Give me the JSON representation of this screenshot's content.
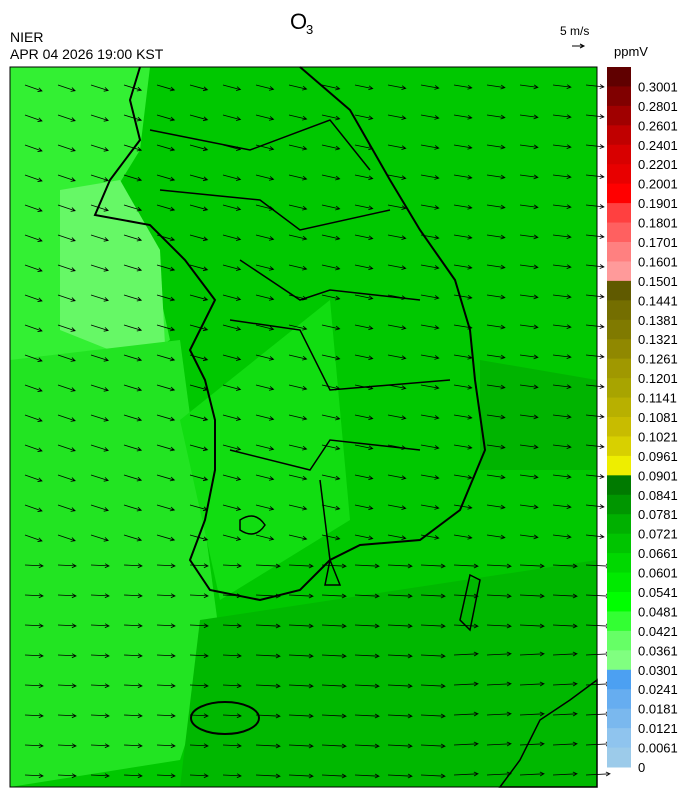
{
  "header": {
    "title_main": "O",
    "title_sub": "3",
    "agency": "NIER",
    "datetime": "APR 04 2026 19:00 KST"
  },
  "wind_scale": {
    "label": "5 m/s"
  },
  "colorbar": {
    "unit": "ppmV",
    "labels": [
      "0.3001",
      "0.2801",
      "0.2601",
      "0.2401",
      "0.2201",
      "0.2001",
      "0.1901",
      "0.1801",
      "0.1701",
      "0.1601",
      "0.1501",
      "0.1441",
      "0.1381",
      "0.1321",
      "0.1261",
      "0.1201",
      "0.1141",
      "0.1081",
      "0.1021",
      "0.0961",
      "0.0901",
      "0.0841",
      "0.0781",
      "0.0721",
      "0.0661",
      "0.0601",
      "0.0541",
      "0.0481",
      "0.0421",
      "0.0361",
      "0.0301",
      "0.0241",
      "0.0181",
      "0.0121",
      "0.0061",
      "0"
    ],
    "colors": [
      "#600000",
      "#800000",
      "#a00000",
      "#c00000",
      "#d80000",
      "#e80000",
      "#ff0000",
      "#ff4040",
      "#ff6060",
      "#ff8080",
      "#ff9a9a",
      "#605a00",
      "#746e00",
      "#807a00",
      "#908800",
      "#a09800",
      "#a8a400",
      "#b8b000",
      "#c8bc00",
      "#d8d000",
      "#eeee00",
      "#007a00",
      "#009600",
      "#00b000",
      "#00c400",
      "#00d800",
      "#00ea00",
      "#00ff00",
      "#33ff33",
      "#66ff66",
      "#80ff80",
      "#4ca0f2",
      "#66adf0",
      "#7ab8ee",
      "#8fc4ee",
      "#9ccbea"
    ]
  }
}
